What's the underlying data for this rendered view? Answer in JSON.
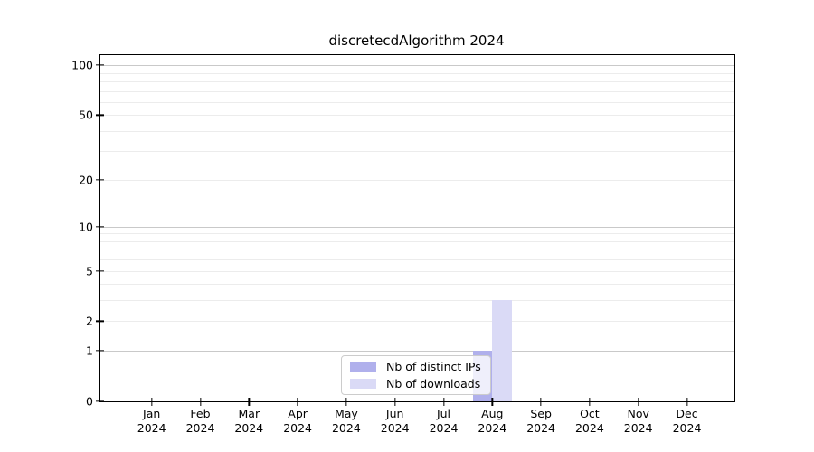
{
  "title": "discretecdAlgorithm 2024",
  "chart_data": {
    "type": "bar",
    "title": "discretecdAlgorithm 2024",
    "categories": [
      "Jan 2024",
      "Feb 2024",
      "Mar 2024",
      "Apr 2024",
      "May 2024",
      "Jun 2024",
      "Jul 2024",
      "Aug 2024",
      "Sep 2024",
      "Oct 2024",
      "Nov 2024",
      "Dec 2024"
    ],
    "series": [
      {
        "name": "Nb of distinct IPs",
        "color": "#b0b0ec",
        "values": [
          0,
          0,
          0,
          0,
          0,
          0,
          0,
          1,
          0,
          0,
          0,
          0
        ]
      },
      {
        "name": "Nb of downloads",
        "color": "#dadaf6",
        "values": [
          0,
          0,
          0,
          0,
          0,
          0,
          0,
          3,
          0,
          0,
          0,
          0
        ]
      }
    ],
    "yscale": "log1p",
    "ylim": [
      0,
      115
    ],
    "yticks": [
      0,
      1,
      2,
      5,
      10,
      20,
      50,
      100
    ],
    "major_gridlines": [
      1,
      10,
      100
    ],
    "minor_gridlines": [
      2,
      3,
      4,
      5,
      6,
      7,
      8,
      9,
      20,
      30,
      40,
      50,
      60,
      70,
      80,
      90
    ],
    "grid": "on",
    "legend_position": "lower center"
  },
  "colors": {
    "grid_major": "#c9c9c9",
    "grid_minor": "#ececec",
    "axis": "#000000",
    "legend_border": "#cccccc"
  }
}
